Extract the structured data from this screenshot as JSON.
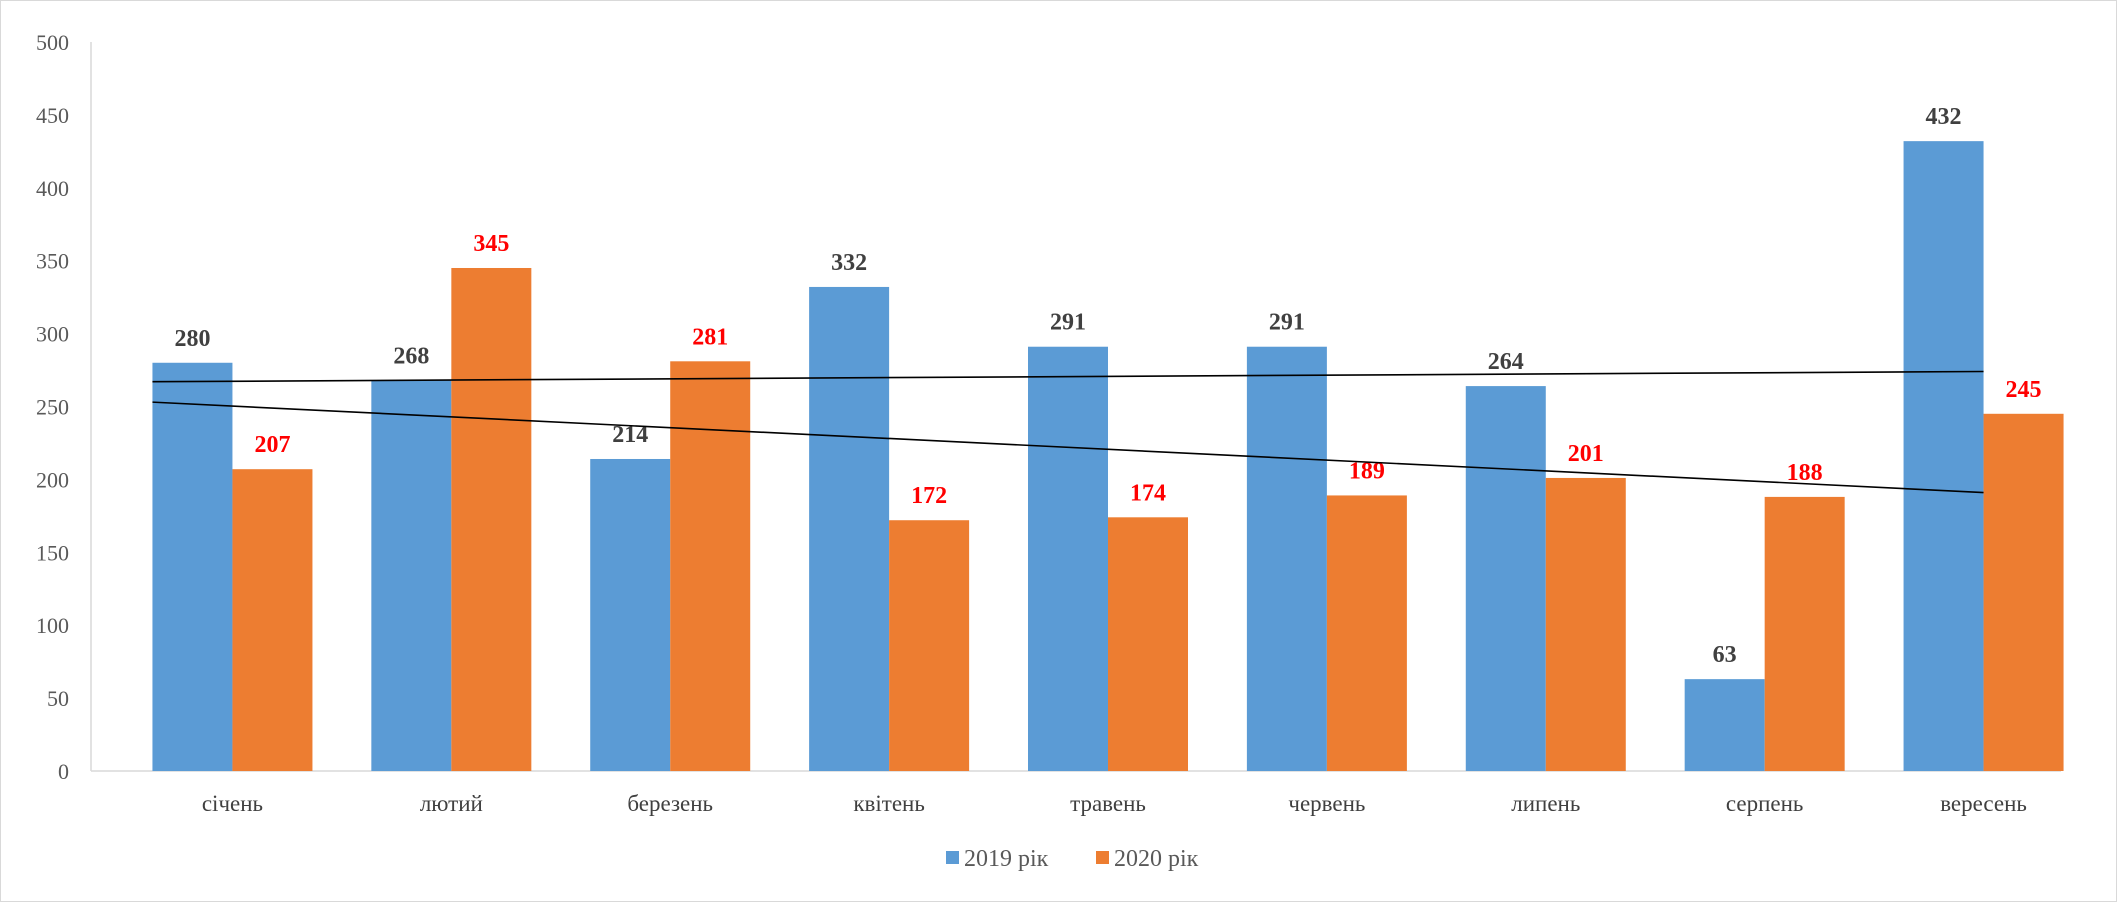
{
  "chart_data": {
    "type": "bar",
    "title": "",
    "xlabel": "",
    "ylabel": "",
    "ylim": [
      0,
      500
    ],
    "yticks": [
      0,
      50,
      100,
      150,
      200,
      250,
      300,
      350,
      400,
      450,
      500
    ],
    "categories": [
      "січень",
      "лютий",
      "березень",
      "квітень",
      "травень",
      "червень",
      "липень",
      "серпень",
      "вересень"
    ],
    "series": [
      {
        "name": "2019 рік",
        "color": "#5b9bd5",
        "label_color": "#404040",
        "values": [
          280,
          268,
          214,
          332,
          291,
          291,
          264,
          63,
          432
        ]
      },
      {
        "name": "2020 рік",
        "color": "#ed7d31",
        "label_color": "#ff0000",
        "values": [
          207,
          345,
          281,
          172,
          174,
          189,
          201,
          188,
          245
        ]
      }
    ],
    "trendlines": [
      {
        "series": "2019 рік",
        "type": "linear",
        "color": "#000000",
        "start_value": 267,
        "end_value": 274
      },
      {
        "series": "2020 рік",
        "type": "linear",
        "color": "#000000",
        "start_value": 253,
        "end_value": 191
      }
    ],
    "grid": false,
    "legend_position": "bottom"
  }
}
